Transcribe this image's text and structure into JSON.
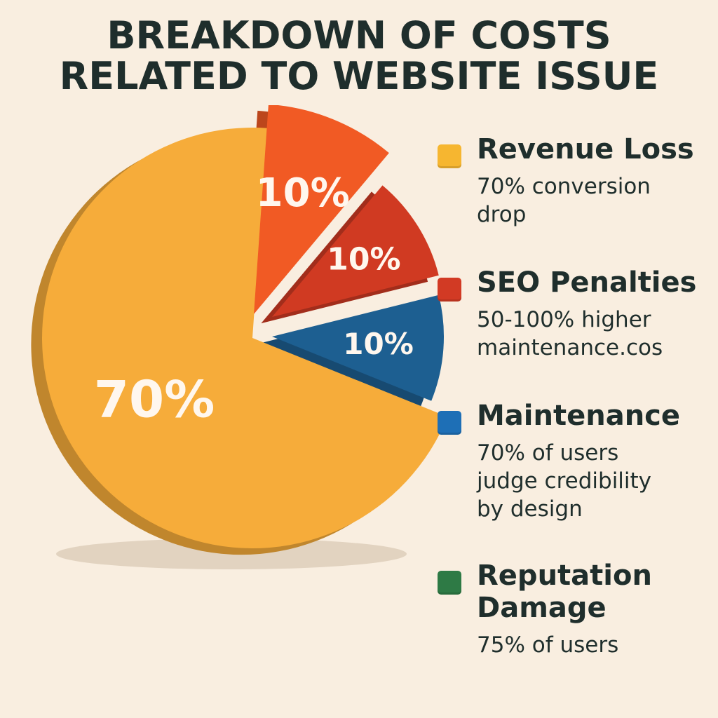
{
  "title": {
    "line1": "BREAKDOWN OF COSTS",
    "line2": "RELATED TO WEBSITE ISSUE"
  },
  "chart_data": {
    "type": "pie",
    "title": "BREAKDOWN OF COSTS RELATED TO WEBSITE ISSUE",
    "slices": [
      {
        "label": "70%",
        "value": 70,
        "color": "#f6ac3a"
      },
      {
        "label": "10%",
        "value": 10,
        "color": "#f15a24"
      },
      {
        "label": "10%",
        "value": 10,
        "color": "#d03a22"
      },
      {
        "label": "10%",
        "value": 10,
        "color": "#1d5f91"
      }
    ],
    "legend_position": "right",
    "legend": [
      {
        "name": "Revenue Loss",
        "description": [
          "70% conversion",
          "drop"
        ],
        "color": "#f6b630"
      },
      {
        "name": "SEO Penalties",
        "description": [
          "50-100% higher",
          "maintenance.cos"
        ],
        "color": "#d23a24"
      },
      {
        "name": "Maintenance",
        "description": [
          "70% of users",
          "judge credibility",
          "by design"
        ],
        "color": "#1e6fb6"
      },
      {
        "name": "Reputation Damage",
        "name_lines": [
          "Reputation",
          "Damage"
        ],
        "description": [
          "75% of users"
        ],
        "color": "#2e7a45"
      }
    ]
  }
}
